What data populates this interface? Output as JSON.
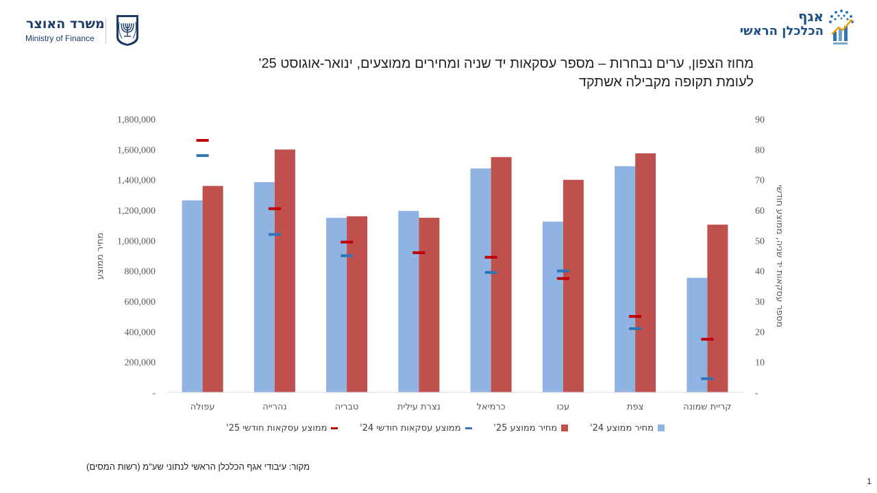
{
  "header": {
    "left_logo_hebrew": "משרד האוצר",
    "left_logo_english": "Ministry of Finance",
    "right_logo_line1": "אגף",
    "right_logo_line2": "הכלכלן הראשי",
    "emblem_icon": "menorah-emblem-icon",
    "chief_economist_icon": "growth-chart-icon"
  },
  "title": "מחוז הצפון, ערים נבחרות – מספר עסקאות יד שניה ומחירים ממוצעים, ינואר-אוגוסט 25' לעומת תקופה מקבילה אשתקד",
  "source": "מקור: עיבודי אגף הכלכלן הראשי לנתוני שע\"מ (רשות המסים)",
  "page_number": "1",
  "colors": {
    "price24": "#8fb4e3",
    "price25": "#c0504d",
    "tx24": "#2e75b6",
    "tx25": "#c00000",
    "axis_text": "#595959"
  },
  "chart_data": {
    "type": "bar",
    "categories": [
      "עפולה",
      "נהרייה",
      "טבריה",
      "נצרת עילית",
      "כרמיאל",
      "עכו",
      "צפת",
      "קריית שמונה"
    ],
    "series": [
      {
        "name": "מחיר ממוצע 24'",
        "kind": "bar",
        "axis": "left",
        "values": [
          1265000,
          1385000,
          1150000,
          1195000,
          1475000,
          1125000,
          1490000,
          755000
        ]
      },
      {
        "name": "מחיר ממוצע 25'",
        "kind": "bar",
        "axis": "left",
        "values": [
          1360000,
          1600000,
          1160000,
          1150000,
          1550000,
          1400000,
          1575000,
          1105000
        ]
      },
      {
        "name": "ממוצע עסקאות חודשי 24'",
        "kind": "marker",
        "axis": "right",
        "values": [
          78,
          52,
          45,
          46,
          39.5,
          40,
          21,
          4.5
        ]
      },
      {
        "name": "ממוצע עסקאות חודשי 25'",
        "kind": "marker",
        "axis": "right",
        "values": [
          83,
          60.5,
          49.5,
          46,
          44.5,
          37.5,
          25,
          17.5
        ]
      }
    ],
    "left_axis": {
      "label": "מחיר ממוצע",
      "ylim": [
        0,
        1800000
      ],
      "ticks": [
        "-",
        "200,000",
        "400,000",
        "600,000",
        "800,000",
        "1,000,000",
        "1,200,000",
        "1,400,000",
        "1,600,000",
        "1,800,000"
      ]
    },
    "right_axis": {
      "label": "מספר עסקאות יד שניה, ממוצע חודשי",
      "ylim": [
        0,
        90
      ],
      "ticks": [
        "-",
        "10",
        "20",
        "30",
        "40",
        "50",
        "60",
        "70",
        "80",
        "90"
      ]
    },
    "legend": [
      "מחיר ממוצע 24'",
      "מחיר ממוצע 25'",
      "ממוצע עסקאות חודשי 24'",
      "ממוצע עסקאות חודשי 25'"
    ],
    "legend_position": "bottom",
    "grid": false
  }
}
